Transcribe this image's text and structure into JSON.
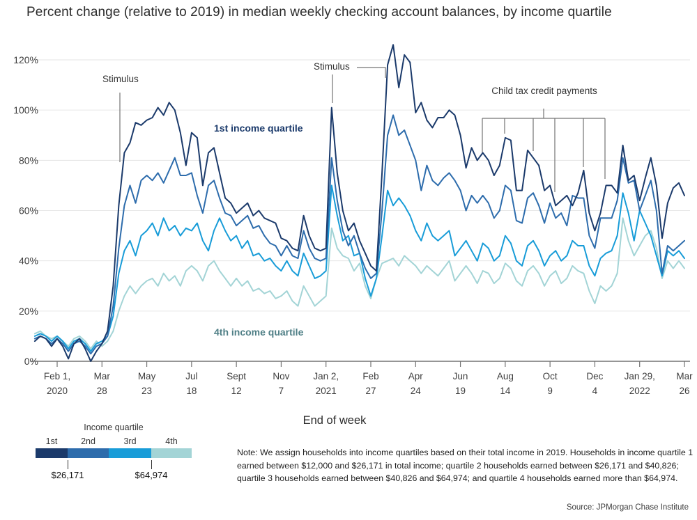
{
  "title": "Percent change (relative to 2019) in median weekly checking account balances, by income quartile",
  "xaxis_label": "End of week",
  "note": "Note: We assign households into income quartiles based on their total income in 2019. Households in income quartile 1 earned between $12,000 and $26,171 in total income; quartile 2 households earned between $26,171 and $40,826; quartile 3 households earned between $40,826 and $64,974; and quartile 4 households earned more than $64,974.",
  "source": "Source: JPMorgan Chase Institute",
  "annotations": {
    "stimulus1": "Stimulus",
    "stimulus2": "Stimulus",
    "child_tax_credit": "Child tax credit payments"
  },
  "series_labels": {
    "q1": {
      "text": "1st income quartile",
      "color": "#1b3a6b"
    },
    "q4": {
      "text": "4th income quartile",
      "color": "#4f7f86"
    }
  },
  "legend": {
    "title": "Income quartile",
    "items": [
      {
        "label": "1st",
        "color": "#1b3a6b"
      },
      {
        "label": "2nd",
        "color": "#2d6cac"
      },
      {
        "label": "3rd",
        "color": "#189cd8"
      },
      {
        "label": "4th",
        "color": "#a3d4d6"
      }
    ],
    "boundary_values": [
      {
        "label": "$26,171"
      },
      {
        "label": "$64,974"
      }
    ]
  },
  "chart_data": {
    "type": "line",
    "title": "Percent change (relative to 2019) in median weekly checking account balances, by income quartile",
    "xlabel": "End of week",
    "ylabel": "",
    "ylim": [
      0,
      126
    ],
    "grid": true,
    "y_ticks": [
      0,
      20,
      40,
      60,
      80,
      100,
      120
    ],
    "y_tick_suffix": "%",
    "x_tick_indices": [
      4,
      12,
      20,
      28,
      36,
      44,
      52,
      60,
      68,
      76,
      84,
      92,
      100,
      108,
      116
    ],
    "x_tick_labels": [
      [
        "Feb 1,",
        "2020"
      ],
      [
        "Mar",
        "28"
      ],
      [
        "May",
        "23"
      ],
      [
        "Jul",
        "18"
      ],
      [
        "Sept",
        "12"
      ],
      [
        "Nov",
        "7"
      ],
      [
        "Jan 2,",
        "2021"
      ],
      [
        "Feb",
        "27"
      ],
      [
        "Apr",
        "24"
      ],
      [
        "Jun",
        "19"
      ],
      [
        "Aug",
        "14"
      ],
      [
        "Oct",
        "9"
      ],
      [
        "Dec",
        "4"
      ],
      [
        "Jan 29,",
        "2022"
      ],
      [
        "Mar",
        "26"
      ]
    ],
    "colors": {
      "grid": "#e6e6e6",
      "axis": "#737373",
      "callout": "#737373"
    },
    "series": [
      {
        "name": "4th income quartile",
        "color": "#a3d4d6",
        "values": [
          11,
          12,
          10,
          9,
          10,
          8,
          6,
          9,
          10,
          8,
          5,
          8,
          6,
          8,
          12,
          20,
          26,
          30,
          27,
          30,
          32,
          33,
          30,
          35,
          32,
          34,
          30,
          36,
          38,
          36,
          32,
          38,
          40,
          36,
          33,
          30,
          33,
          30,
          32,
          28,
          29,
          27,
          28,
          25,
          26,
          28,
          24,
          22,
          30,
          26,
          22,
          24,
          26,
          53,
          45,
          42,
          41,
          36,
          39,
          30,
          25,
          33,
          39,
          40,
          41,
          38,
          42,
          40,
          38,
          35,
          38,
          36,
          34,
          37,
          40,
          32,
          35,
          38,
          35,
          31,
          36,
          35,
          31,
          33,
          39,
          37,
          32,
          30,
          36,
          38,
          35,
          30,
          34,
          36,
          31,
          33,
          38,
          36,
          35,
          28,
          23,
          30,
          28,
          30,
          35,
          57,
          48,
          42,
          46,
          50,
          52,
          45,
          33,
          40,
          37,
          40,
          37
        ]
      },
      {
        "name": "3rd income quartile",
        "color": "#189cd8",
        "values": [
          10,
          11,
          10,
          8,
          10,
          8,
          5,
          8,
          9,
          7,
          4,
          7,
          8,
          10,
          18,
          35,
          44,
          48,
          42,
          50,
          52,
          55,
          50,
          57,
          52,
          54,
          50,
          53,
          52,
          55,
          48,
          44,
          52,
          57,
          52,
          48,
          50,
          45,
          48,
          42,
          43,
          40,
          41,
          38,
          36,
          40,
          36,
          34,
          43,
          38,
          33,
          34,
          36,
          70,
          58,
          48,
          50,
          42,
          43,
          33,
          26,
          33,
          50,
          68,
          62,
          65,
          62,
          58,
          52,
          48,
          55,
          50,
          48,
          50,
          52,
          42,
          45,
          48,
          44,
          40,
          47,
          45,
          40,
          42,
          50,
          47,
          40,
          38,
          46,
          48,
          44,
          38,
          42,
          44,
          40,
          42,
          48,
          46,
          46,
          38,
          34,
          41,
          43,
          44,
          50,
          67,
          59,
          48,
          60,
          55,
          50,
          42,
          34,
          44,
          42,
          44,
          41
        ]
      },
      {
        "name": "2nd income quartile",
        "color": "#2d6cac",
        "values": [
          9,
          10,
          9,
          7,
          9,
          7,
          4,
          7,
          8,
          6,
          3,
          6,
          7,
          10,
          22,
          45,
          62,
          70,
          63,
          72,
          74,
          72,
          75,
          71,
          76,
          81,
          74,
          74,
          75,
          66,
          59,
          70,
          72,
          65,
          59,
          58,
          54,
          56,
          58,
          53,
          54,
          50,
          47,
          46,
          42,
          46,
          42,
          41,
          52,
          45,
          41,
          40,
          41,
          81,
          64,
          52,
          46,
          50,
          43,
          37,
          33,
          35,
          60,
          90,
          98,
          90,
          92,
          86,
          80,
          68,
          78,
          72,
          70,
          73,
          75,
          72,
          68,
          60,
          66,
          63,
          66,
          63,
          57,
          60,
          70,
          68,
          56,
          55,
          65,
          67,
          62,
          55,
          63,
          57,
          59,
          54,
          66,
          65,
          65,
          50,
          45,
          57,
          57,
          57,
          64,
          81,
          71,
          72,
          60,
          66,
          72,
          60,
          35,
          46,
          44,
          46,
          48
        ]
      },
      {
        "name": "1st income quartile",
        "color": "#1b3a6b",
        "values": [
          8,
          10,
          9,
          6,
          9,
          6,
          1,
          7,
          9,
          5,
          0,
          4,
          7,
          12,
          30,
          62,
          83,
          87,
          95,
          94,
          96,
          97,
          101,
          98,
          103,
          100,
          91,
          78,
          91,
          89,
          70,
          83,
          85,
          75,
          65,
          63,
          59,
          61,
          63,
          58,
          60,
          57,
          56,
          55,
          49,
          48,
          45,
          44,
          58,
          50,
          45,
          44,
          45,
          101,
          75,
          60,
          52,
          55,
          48,
          43,
          38,
          36,
          75,
          118,
          126,
          109,
          122,
          119,
          99,
          103,
          96,
          93,
          97,
          97,
          100,
          98,
          90,
          77,
          85,
          80,
          83,
          80,
          74,
          78,
          89,
          88,
          68,
          68,
          84,
          81,
          78,
          68,
          70,
          62,
          64,
          66,
          62,
          67,
          76,
          59,
          52,
          59,
          70,
          70,
          67,
          86,
          72,
          74,
          64,
          73,
          81,
          70,
          49,
          63,
          69,
          71,
          66
        ]
      }
    ]
  }
}
